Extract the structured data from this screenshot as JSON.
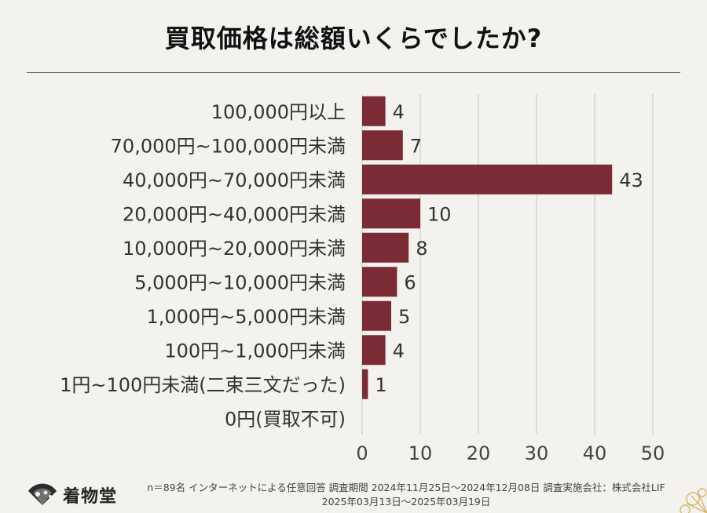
{
  "title": "買取価格は総額いくらでしたか?",
  "chart_data": {
    "type": "bar",
    "orientation": "horizontal",
    "categories": [
      "100,000円以上",
      "70,000円~100,000円未満",
      "40,000円~70,000円未満",
      "20,000円~40,000円未満",
      "10,000円~20,000円未満",
      "5,000円~10,000円未満",
      "1,000円~5,000円未満",
      "100円~1,000円未満",
      "1円~100円未満(二束三文だった)",
      "0円(買取不可)"
    ],
    "values": [
      4,
      7,
      43,
      10,
      8,
      6,
      5,
      4,
      1,
      0
    ],
    "xlim": [
      0,
      50
    ],
    "xticks": [
      0,
      10,
      20,
      30,
      40,
      50
    ],
    "grid": "vertical",
    "bar_color": "#7a2b34",
    "grid_color": "#d6d4d0"
  },
  "footer": {
    "brand": "着物堂",
    "note_line1": "n＝89名 インターネットによる任意回答 調査期間 2024年11月25日～2024年12月08日 調査実施会社：株式会社LIF",
    "note_line2": "2025年03月13日～2025年03月19日"
  }
}
